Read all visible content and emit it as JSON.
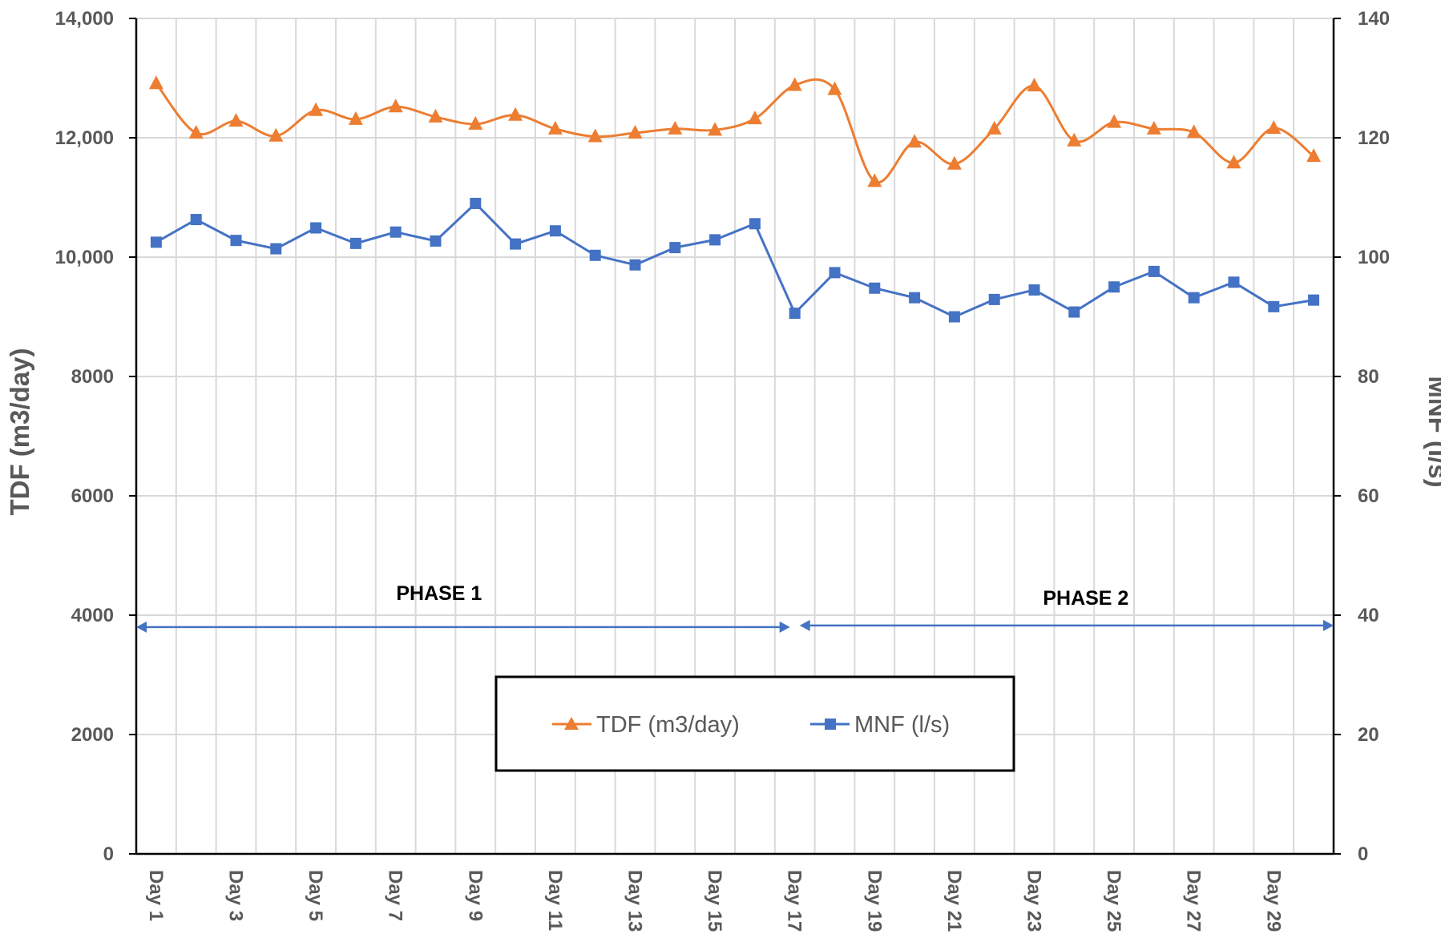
{
  "chart_data": {
    "type": "line",
    "title": "",
    "xlabel": "",
    "ylabel": "TDF (m3/day)",
    "y2label": "MNF (l/s)",
    "ylim": [
      0,
      14000
    ],
    "y2lim": [
      0,
      140
    ],
    "yticks": [
      "0",
      "2000",
      "4000",
      "6000",
      "8000",
      "10,000",
      "12,000",
      "14,000"
    ],
    "y2ticks": [
      "0",
      "20",
      "40",
      "60",
      "80",
      "100",
      "120",
      "140"
    ],
    "categories": [
      "Day 1",
      "Day 2",
      "Day 3",
      "Day 4",
      "Day 5",
      "Day 6",
      "Day 7",
      "Day 8",
      "Day 9",
      "Day 10",
      "Day 11",
      "Day 12",
      "Day 13",
      "Day 14",
      "Day 15",
      "Day 16",
      "Day 17",
      "Day 18",
      "Day 19",
      "Day 20",
      "Day 21",
      "Day 22",
      "Day 23",
      "Day 24",
      "Day 25",
      "Day 26",
      "Day 27",
      "Day 28",
      "Day 29",
      "Day 30"
    ],
    "xtick_labels": [
      "Day 1",
      "Day 3",
      "Day 5",
      "Day 7",
      "Day 9",
      "Day 11",
      "Day 13",
      "Day 15",
      "Day 17",
      "Day 19",
      "Day 21",
      "Day 23",
      "Day 25",
      "Day 27",
      "Day 29"
    ],
    "grid": true,
    "series": [
      {
        "name": "TDF (m3/day)",
        "axis": "left",
        "color": "#ED7D31",
        "marker": "triangle",
        "smooth": true,
        "values": [
          12910,
          12080,
          12280,
          12030,
          12460,
          12310,
          12520,
          12350,
          12230,
          12380,
          12150,
          12020,
          12080,
          12150,
          12130,
          12320,
          12880,
          12810,
          11270,
          11930,
          11560,
          12150,
          12870,
          11950,
          12260,
          12150,
          12090,
          11580,
          12160,
          11690
        ]
      },
      {
        "name": "MNF (l/s)",
        "axis": "right",
        "color": "#4472C4",
        "marker": "square",
        "smooth": false,
        "values": [
          102.5,
          106.3,
          102.8,
          101.4,
          104.9,
          102.3,
          104.2,
          102.7,
          109.0,
          102.2,
          104.4,
          100.3,
          98.7,
          101.6,
          102.9,
          105.6,
          90.6,
          97.4,
          94.8,
          93.2,
          90.0,
          92.9,
          94.5,
          90.8,
          95.0,
          97.6,
          93.2,
          95.8,
          91.7,
          92.8
        ]
      }
    ],
    "annotations": [
      {
        "label": "PHASE 1",
        "from": "Day 1",
        "to": "Day 17",
        "level": 3800
      },
      {
        "label": "PHASE 2",
        "from": "Day 17",
        "to": "Day 30",
        "level": 3800
      }
    ],
    "legend": {
      "position": "bottom-center",
      "entries": [
        "TDF (m3/day)",
        "MNF (l/s)"
      ]
    }
  }
}
